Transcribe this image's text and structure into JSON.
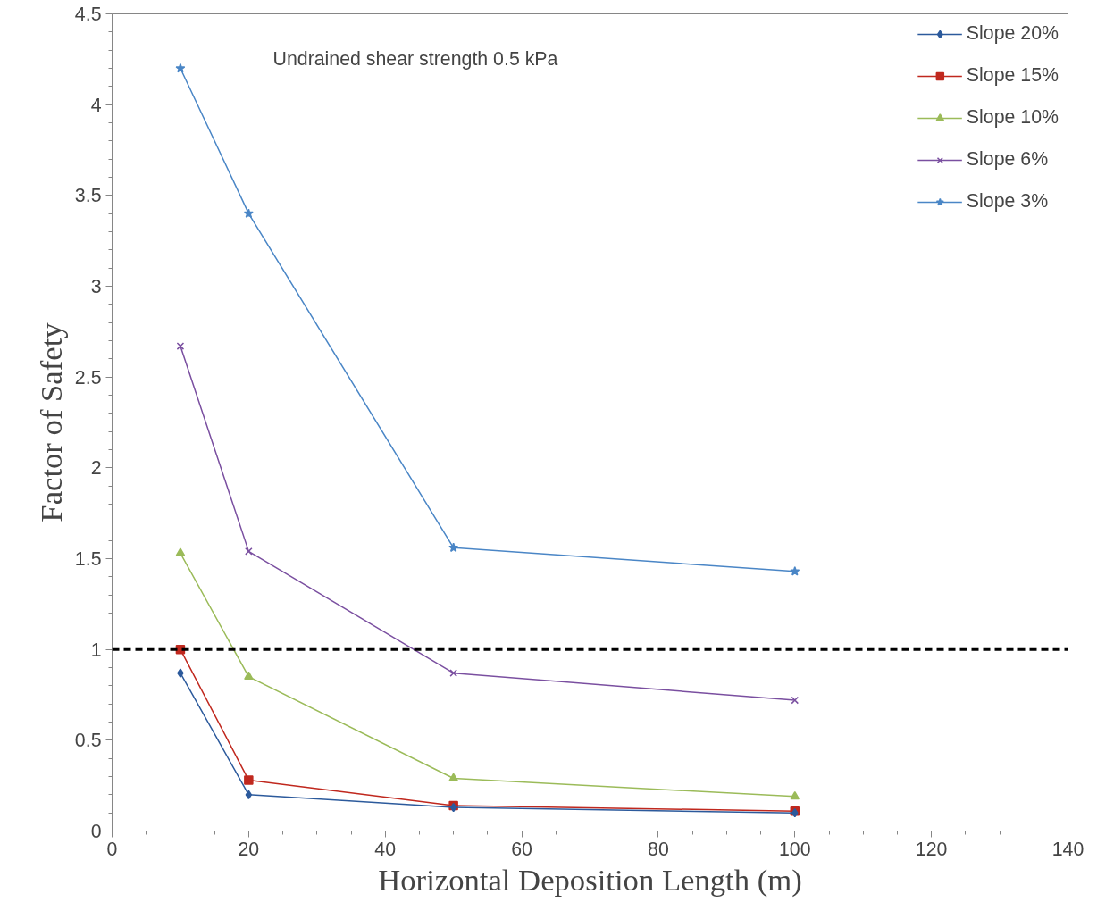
{
  "chart_data": {
    "type": "line",
    "xlabel": "Horizontal Deposition Length (m)",
    "ylabel": "Factor of Safety",
    "annotations": [
      "Undrained shear strength 0.5 kPa"
    ],
    "x": [
      10,
      20,
      50,
      100
    ],
    "series": [
      {
        "name": "Slope 20%",
        "color": "#2c5a9c",
        "marker": "diamond",
        "values": [
          0.87,
          0.2,
          0.13,
          0.1
        ]
      },
      {
        "name": "Slope 15%",
        "color": "#c0281e",
        "marker": "square",
        "values": [
          1.0,
          0.28,
          0.14,
          0.11
        ]
      },
      {
        "name": "Slope 10%",
        "color": "#9bbb59",
        "marker": "triangle",
        "values": [
          1.53,
          0.85,
          0.29,
          0.19
        ]
      },
      {
        "name": "Slope 6%",
        "color": "#7a4fa0",
        "marker": "cross",
        "values": [
          2.67,
          1.54,
          0.87,
          0.72
        ]
      },
      {
        "name": "Slope 3%",
        "color": "#4a86c6",
        "marker": "star",
        "values": [
          4.2,
          3.4,
          1.56,
          1.43
        ]
      }
    ],
    "xlim": [
      0,
      140
    ],
    "xticks": [
      0,
      20,
      40,
      60,
      80,
      100,
      120,
      140
    ],
    "ylim": [
      0,
      4.5
    ],
    "yticks": [
      0,
      0.5,
      1,
      1.5,
      2,
      2.5,
      3,
      3.5,
      4,
      4.5
    ],
    "ref_lines": [
      {
        "axis": "y",
        "value": 1,
        "color": "#000000",
        "line_style": "dashed"
      }
    ],
    "grid": false,
    "legend": "top right"
  }
}
